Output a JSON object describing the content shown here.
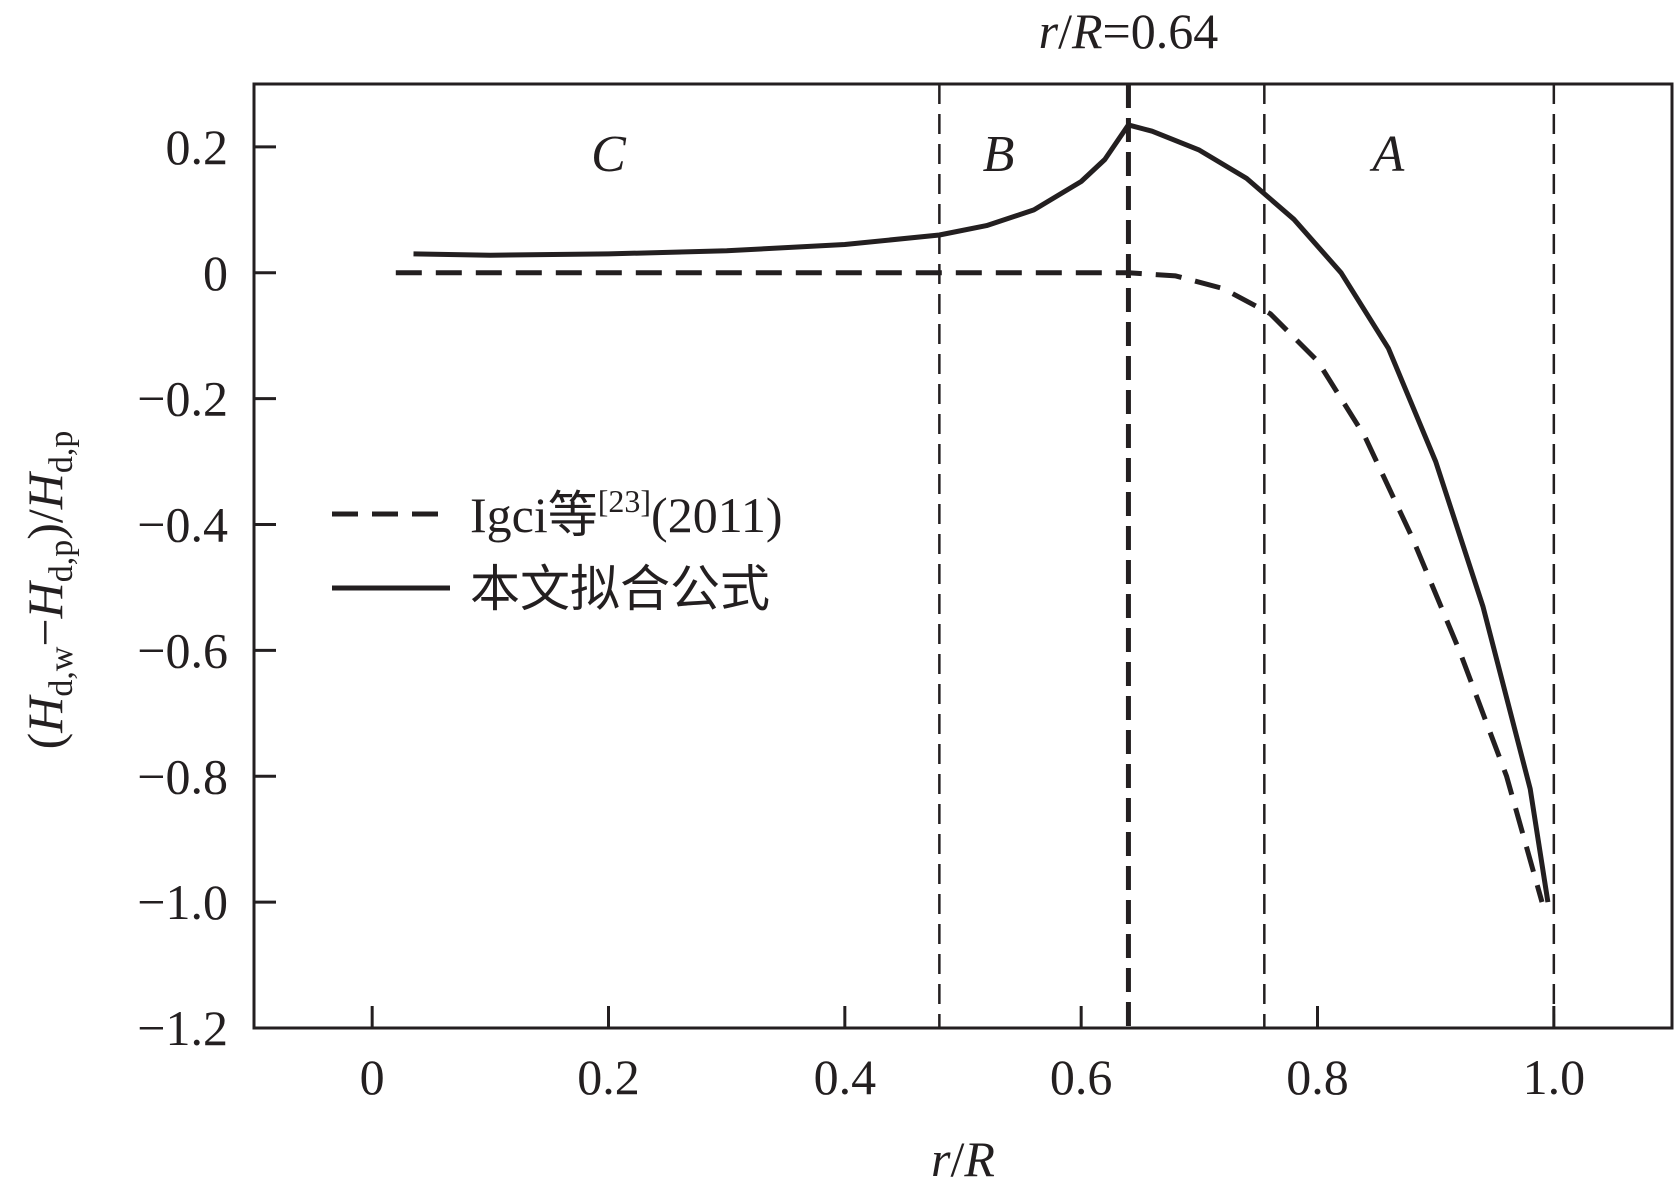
{
  "chart_data": {
    "type": "line",
    "title": "",
    "xlabel": {
      "italic_a": "r",
      "sep": "/",
      "italic_b": "R"
    },
    "ylabel": {
      "open": "(",
      "h1": "H",
      "sub1": "d,w",
      "minus": "−",
      "h2": "H",
      "sub2": "d,p",
      "close": ")/",
      "h3": "H",
      "sub3": "d,p"
    },
    "xlim": [
      -0.1,
      1.1
    ],
    "ylim": [
      -1.2,
      0.3
    ],
    "x_ticks": [
      {
        "value": 0,
        "label": "0"
      },
      {
        "value": 0.2,
        "label": "0.2"
      },
      {
        "value": 0.4,
        "label": "0.4"
      },
      {
        "value": 0.6,
        "label": "0.6"
      },
      {
        "value": 0.8,
        "label": "0.8"
      },
      {
        "value": 1.0,
        "label": "1.0"
      }
    ],
    "y_ticks": [
      {
        "value": 0.2,
        "label": "0.2"
      },
      {
        "value": 0,
        "label": "0"
      },
      {
        "value": -0.2,
        "label": "−0.2"
      },
      {
        "value": -0.4,
        "label": "−0.4"
      },
      {
        "value": -0.6,
        "label": "−0.6"
      },
      {
        "value": -0.8,
        "label": "−0.8"
      },
      {
        "value": -1.0,
        "label": "−1.0"
      },
      {
        "value": -1.2,
        "label": "−1.2"
      }
    ],
    "grid": false,
    "legend_position": "middle-left",
    "vertical_lines": [
      {
        "x": 0.48,
        "style": "dashed"
      },
      {
        "x": 0.64,
        "style": "dashed-bold"
      },
      {
        "x": 0.755,
        "style": "dashed"
      },
      {
        "x": 1.0,
        "style": "dashed"
      }
    ],
    "annotation_top": {
      "italic_a": "r",
      "sep": "/",
      "italic_b": "R",
      "value": "=0.64",
      "x": 0.64
    },
    "regions": [
      {
        "label": "C",
        "x": 0.2,
        "y": 0.19
      },
      {
        "label": "B",
        "x": 0.53,
        "y": 0.19
      },
      {
        "label": "A",
        "x": 0.86,
        "y": 0.19
      }
    ],
    "series": [
      {
        "name": {
          "main": "Igci等",
          "sup": "[23]",
          "tail": "(2011)"
        },
        "style": "dashed",
        "x": [
          0.02,
          0.1,
          0.2,
          0.3,
          0.4,
          0.5,
          0.6,
          0.64,
          0.68,
          0.72,
          0.76,
          0.8,
          0.84,
          0.88,
          0.92,
          0.96,
          0.99
        ],
        "y": [
          0.0,
          0.0,
          0.0,
          0.0,
          0.0,
          0.0,
          0.0,
          0.0,
          -0.005,
          -0.025,
          -0.065,
          -0.14,
          -0.26,
          -0.42,
          -0.6,
          -0.8,
          -1.0
        ]
      },
      {
        "name": {
          "main": "本文拟合公式",
          "sup": "",
          "tail": ""
        },
        "style": "solid",
        "x": [
          0.035,
          0.1,
          0.2,
          0.3,
          0.4,
          0.48,
          0.52,
          0.56,
          0.6,
          0.62,
          0.64,
          0.66,
          0.7,
          0.74,
          0.78,
          0.82,
          0.86,
          0.9,
          0.94,
          0.98,
          0.995
        ],
        "y": [
          0.03,
          0.028,
          0.03,
          0.035,
          0.045,
          0.06,
          0.075,
          0.1,
          0.145,
          0.18,
          0.235,
          0.225,
          0.195,
          0.15,
          0.085,
          0.0,
          -0.12,
          -0.3,
          -0.53,
          -0.82,
          -1.0
        ]
      }
    ]
  }
}
